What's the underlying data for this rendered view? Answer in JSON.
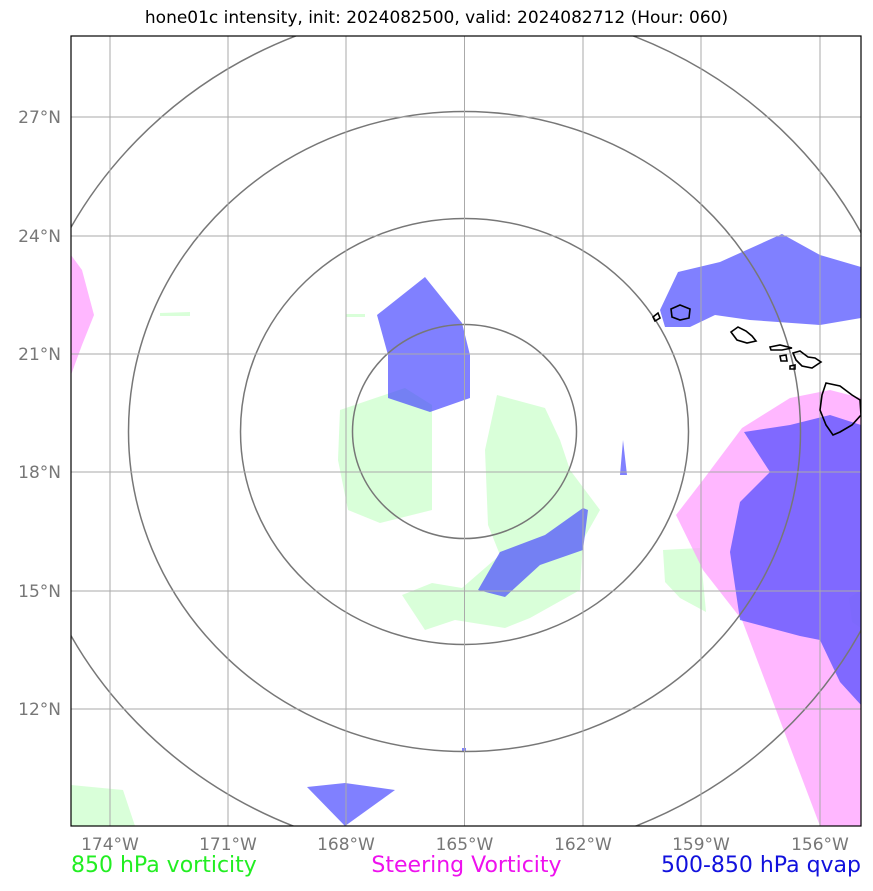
{
  "title": "hone01c intensity, init: 2024082500, valid: 2024082712 (Hour: 060)",
  "map": {
    "lon_range": [
      -174.8,
      -154.6
    ],
    "lat_range": [
      9.0,
      29.0
    ],
    "lat_ticks": [
      "27°N",
      "24°N",
      "21°N",
      "18°N",
      "15°N",
      "12°N"
    ],
    "lon_ticks": [
      "174°W",
      "171°W",
      "168°W",
      "165°W",
      "162°W",
      "159°W",
      "156°W"
    ],
    "grid": true,
    "range_rings_center": {
      "lon": -165.0,
      "lat": 19.0
    },
    "colors": {
      "vorticity_850": "#ccffcc",
      "steering_vorticity": "#ff99ff",
      "qvap_500_850": "#4444ff",
      "rings": "#777777",
      "gridlines": "#aaaaaa",
      "coastline": "#000000"
    }
  },
  "legend": {
    "left": {
      "label": "850 hPa vorticity",
      "color": "#22ee22"
    },
    "middle": {
      "label": "Steering Vorticity",
      "color": "#ee11ee"
    },
    "right": {
      "label": "500-850 hPa qvap",
      "color": "#1111dd"
    }
  }
}
